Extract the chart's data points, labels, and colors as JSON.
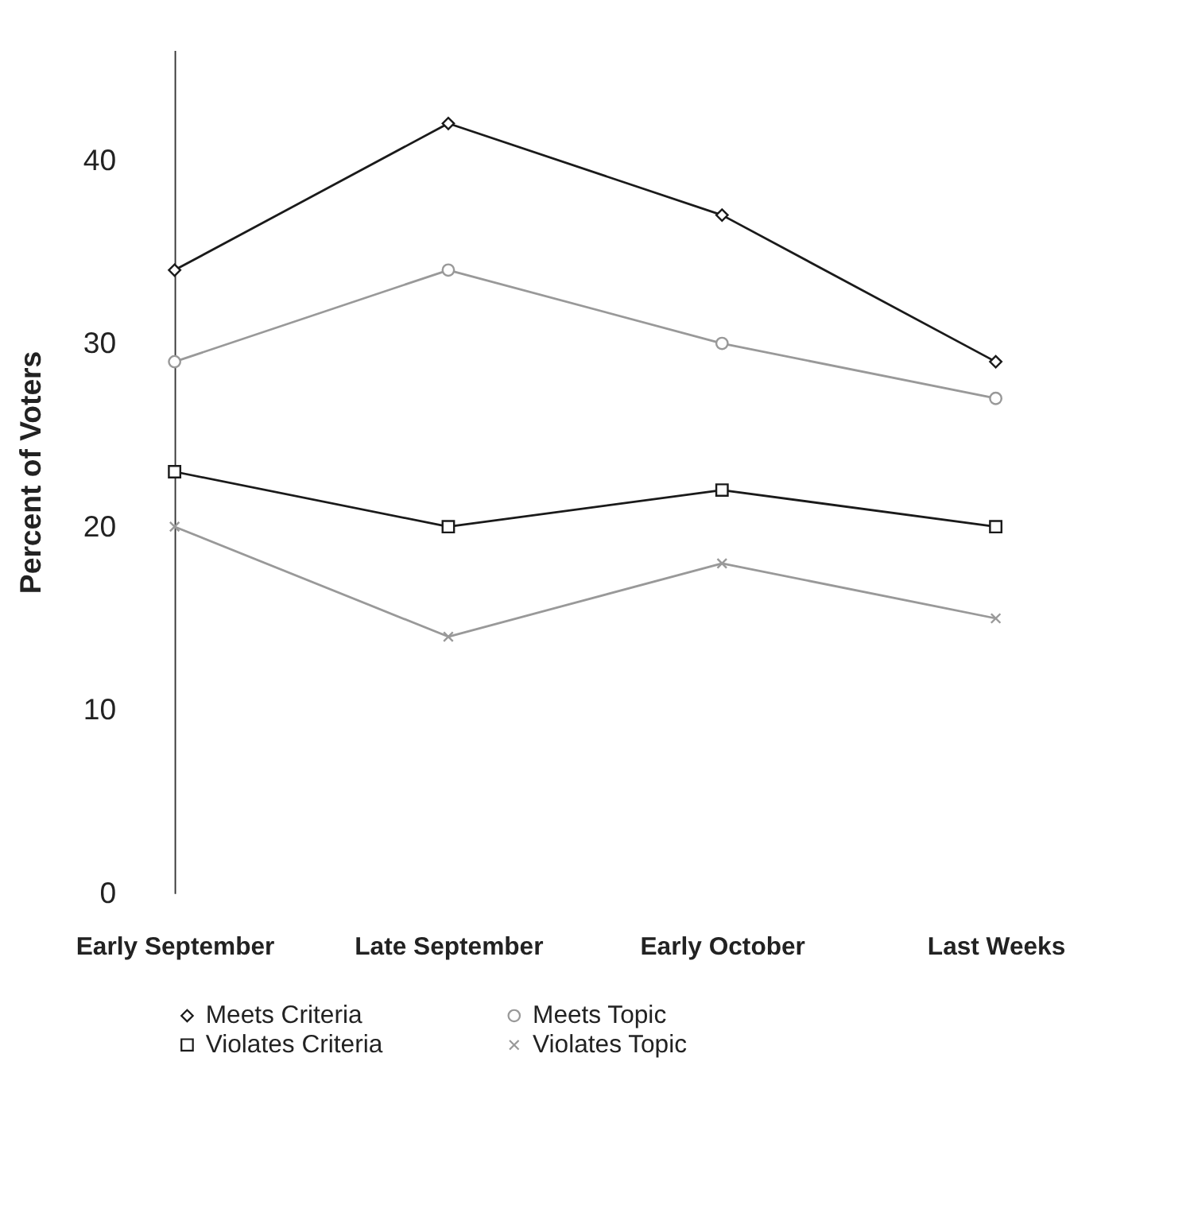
{
  "chart_data": {
    "type": "line",
    "ylabel": "Percent of Voters",
    "categories": [
      "Early September",
      "Late September",
      "Early October",
      "Last  Weeks"
    ],
    "series": [
      {
        "name": "Meets Criteria",
        "color": "#1a1a1a",
        "marker": "diamond",
        "values": [
          34,
          42,
          37,
          29
        ]
      },
      {
        "name": "Meets Topic",
        "color": "#999999",
        "marker": "circle",
        "values": [
          29,
          34,
          30,
          27
        ]
      },
      {
        "name": "Violates Criteria",
        "color": "#1a1a1a",
        "marker": "square",
        "values": [
          23,
          20,
          22,
          20
        ]
      },
      {
        "name": "Violates Topic",
        "color": "#999999",
        "marker": "cross",
        "values": [
          20,
          14,
          18,
          15
        ]
      }
    ],
    "ylim": [
      0,
      46
    ],
    "yticks": [
      0,
      10,
      20,
      30,
      40
    ],
    "grid": false,
    "legend": "bottom",
    "line_style": "solid"
  }
}
